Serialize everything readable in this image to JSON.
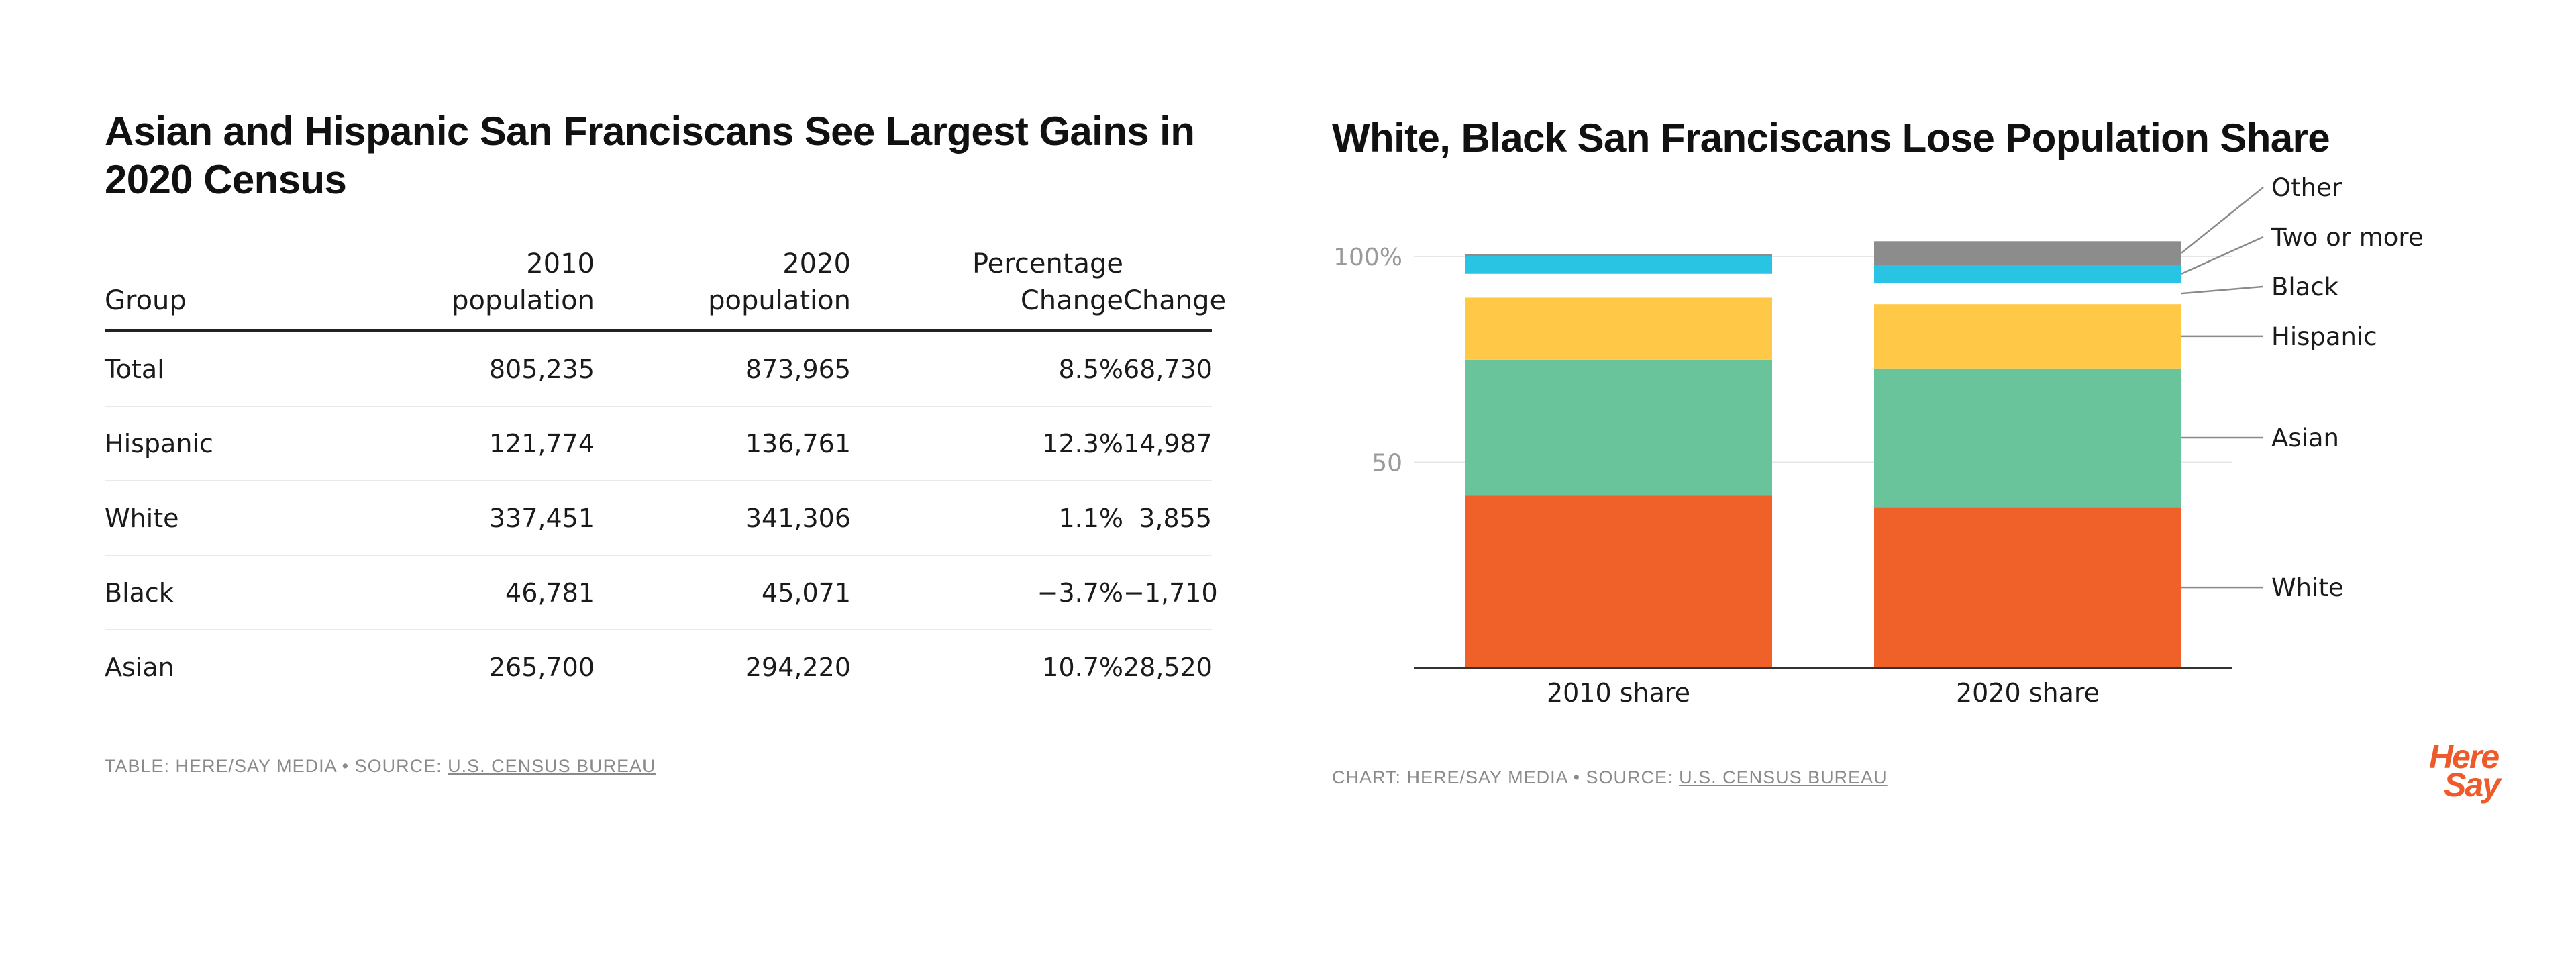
{
  "table": {
    "title": "Asian and Hispanic San Franciscans See Largest Gains in 2020 Census",
    "columns": [
      {
        "line1": "",
        "line2": "Group"
      },
      {
        "line1": "2010",
        "line2": "population"
      },
      {
        "line1": "2020",
        "line2": "population"
      },
      {
        "line1": "Percentage",
        "line2": "Change"
      },
      {
        "line1": "",
        "line2": "Change"
      }
    ],
    "rows": [
      {
        "group": "Total",
        "pop2010": "805,235",
        "pop2020": "873,965",
        "pct": "8.5%",
        "change": "68,730"
      },
      {
        "group": "Hispanic",
        "pop2010": "121,774",
        "pop2020": "136,761",
        "pct": "12.3%",
        "change": "14,987"
      },
      {
        "group": "White",
        "pop2010": "337,451",
        "pop2020": "341,306",
        "pct": "1.1%",
        "change": "3,855"
      },
      {
        "group": "Black",
        "pop2010": "46,781",
        "pop2020": "45,071",
        "pct": "−3.7%",
        "change": "−1,710"
      },
      {
        "group": "Asian",
        "pop2010": "265,700",
        "pop2020": "294,220",
        "pct": "10.7%",
        "change": "28,520"
      }
    ],
    "source_prefix": "TABLE: HERE/SAY MEDIA • SOURCE: ",
    "source_link": "U.S. CENSUS BUREAU"
  },
  "chart_data": {
    "type": "bar",
    "stacked": true,
    "title": "White, Black San Franciscans Lose Population Share",
    "categories": [
      "2010 share",
      "2020 share"
    ],
    "series": [
      {
        "name": "White",
        "values": [
          41.9,
          39.1
        ],
        "color": "#f0612a"
      },
      {
        "name": "Asian",
        "values": [
          33.0,
          33.7
        ],
        "color": "#69c39b"
      },
      {
        "name": "Hispanic",
        "values": [
          15.1,
          15.6
        ],
        "color": "#ffc947"
      },
      {
        "name": "Black",
        "values": [
          5.8,
          5.2
        ],
        "color": "#ffffff"
      },
      {
        "name": "Two or more",
        "values": [
          4.3,
          4.4
        ],
        "color": "#29c3e3"
      },
      {
        "name": "Other",
        "values": [
          0.5,
          5.7
        ],
        "color": "#8c8c8c"
      }
    ],
    "y_ticks": [
      {
        "value": 100,
        "label": "100%"
      },
      {
        "value": 50,
        "label": "50"
      }
    ],
    "ylim": [
      0,
      100
    ],
    "grid": true,
    "xlabel": "",
    "ylabel": "",
    "legend": "right-labels",
    "source_prefix": "CHART: HERE/SAY MEDIA • SOURCE: ",
    "source_link": "U.S. CENSUS BUREAU"
  },
  "logo": {
    "line1": "Here",
    "line2": "Say"
  }
}
